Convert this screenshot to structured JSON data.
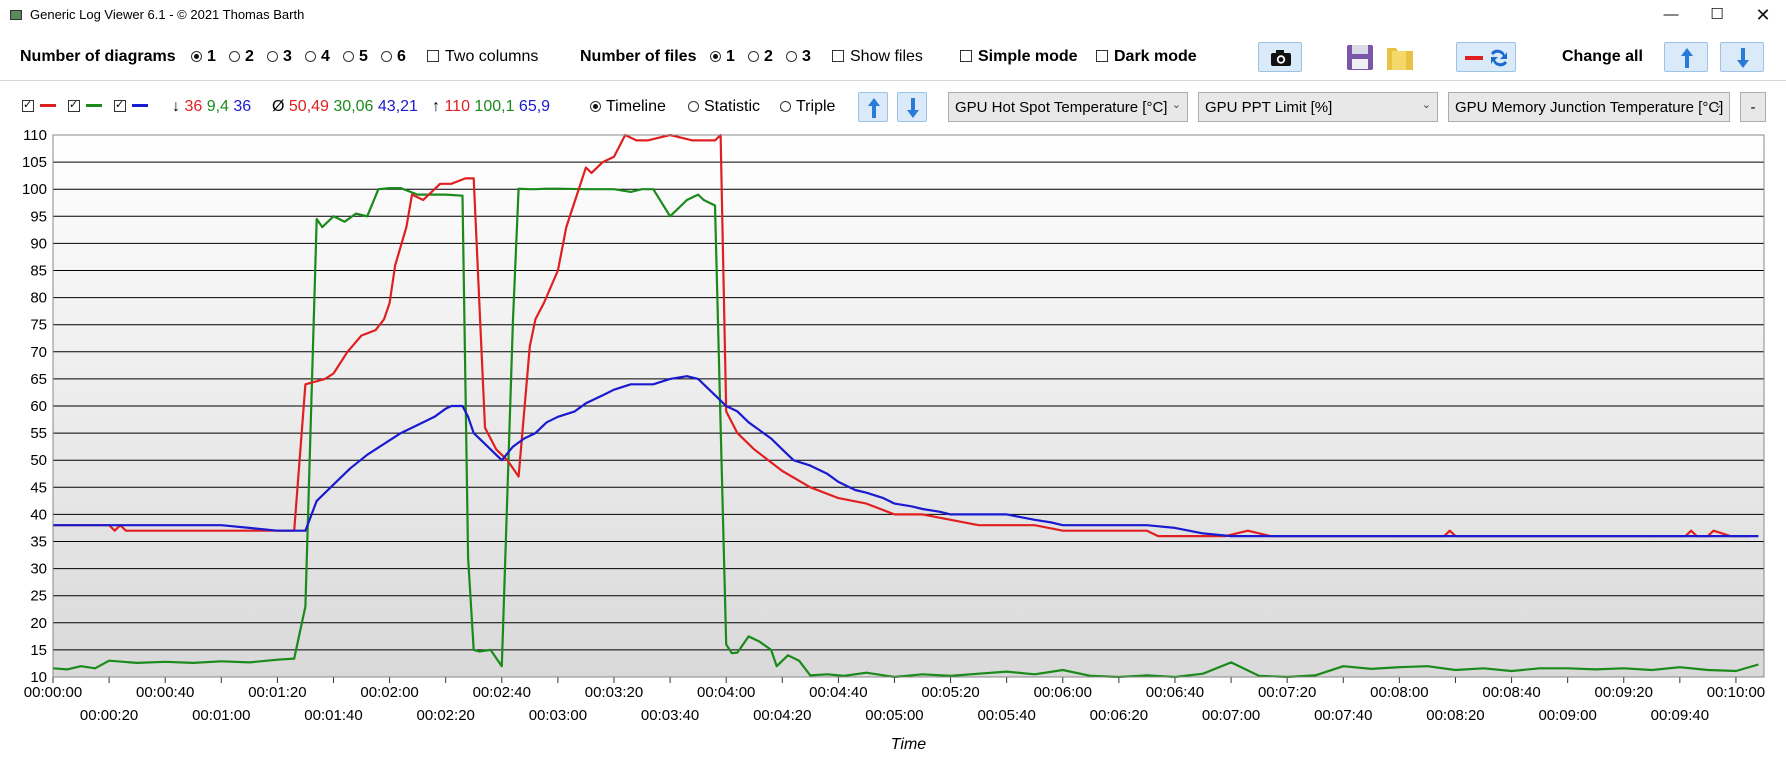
{
  "window": {
    "title": "Generic Log Viewer 6.1 - © 2021 Thomas Barth",
    "min_glyph": "—",
    "max_glyph": "☐",
    "close_glyph": "✕"
  },
  "toolbar": {
    "diagrams_label": "Number of diagrams",
    "diagram_options": [
      "1",
      "2",
      "3",
      "4",
      "5",
      "6"
    ],
    "diagram_selected": "1",
    "two_columns": "Two columns",
    "files_label": "Number of files",
    "file_options": [
      "1",
      "2",
      "3"
    ],
    "file_selected": "1",
    "show_files": "Show files",
    "simple_mode": "Simple mode",
    "dark_mode": "Dark mode",
    "change_all": "Change all",
    "icons": [
      "camera-icon",
      "save-icon",
      "folder-icon",
      "swap-colors-icon",
      "arrow-up-icon",
      "arrow-down-icon"
    ]
  },
  "series_bar": {
    "min_symbol": "↓",
    "avg_symbol": "Ø",
    "max_symbol": "↑",
    "min": [
      "36",
      "9,4",
      "36"
    ],
    "avg": [
      "50,49",
      "30,06",
      "43,21"
    ],
    "max": [
      "110",
      "100,1",
      "65,9"
    ],
    "colors": [
      "#e02020",
      "#1a8a1a",
      "#1a1ad0"
    ],
    "view_modes": [
      "Timeline",
      "Statistic",
      "Triple"
    ],
    "view_selected": "Timeline",
    "sensors": [
      "GPU Hot Spot Temperature [°C]",
      "GPU PPT Limit [%]",
      "GPU Memory Junction Temperature [°C]"
    ],
    "minus_label": "-"
  },
  "chart_data": {
    "type": "line",
    "xlabel": "Time",
    "ylabel": "",
    "ylim": [
      10,
      110
    ],
    "yticks": [
      10,
      15,
      20,
      25,
      30,
      35,
      40,
      45,
      50,
      55,
      60,
      65,
      70,
      75,
      80,
      85,
      90,
      95,
      100,
      105,
      110
    ],
    "xlim": [
      0,
      610
    ],
    "xticks": [
      {
        "t": 0,
        "label": "00:00:00"
      },
      {
        "t": 20,
        "label": "00:00:20"
      },
      {
        "t": 40,
        "label": "00:00:40"
      },
      {
        "t": 60,
        "label": "00:01:00"
      },
      {
        "t": 80,
        "label": "00:01:20"
      },
      {
        "t": 100,
        "label": "00:01:40"
      },
      {
        "t": 120,
        "label": "00:02:00"
      },
      {
        "t": 140,
        "label": "00:02:20"
      },
      {
        "t": 160,
        "label": "00:02:40"
      },
      {
        "t": 180,
        "label": "00:03:00"
      },
      {
        "t": 200,
        "label": "00:03:20"
      },
      {
        "t": 220,
        "label": "00:03:40"
      },
      {
        "t": 240,
        "label": "00:04:00"
      },
      {
        "t": 260,
        "label": "00:04:20"
      },
      {
        "t": 280,
        "label": "00:04:40"
      },
      {
        "t": 300,
        "label": "00:05:00"
      },
      {
        "t": 320,
        "label": "00:05:20"
      },
      {
        "t": 340,
        "label": "00:05:40"
      },
      {
        "t": 360,
        "label": "00:06:00"
      },
      {
        "t": 380,
        "label": "00:06:20"
      },
      {
        "t": 400,
        "label": "00:06:40"
      },
      {
        "t": 420,
        "label": "00:07:00"
      },
      {
        "t": 440,
        "label": "00:07:20"
      },
      {
        "t": 460,
        "label": "00:07:40"
      },
      {
        "t": 480,
        "label": "00:08:00"
      },
      {
        "t": 500,
        "label": "00:08:20"
      },
      {
        "t": 520,
        "label": "00:08:40"
      },
      {
        "t": 540,
        "label": "00:09:00"
      },
      {
        "t": 560,
        "label": "00:09:20"
      },
      {
        "t": 580,
        "label": "00:09:40"
      },
      {
        "t": 600,
        "label": "00:10:00"
      }
    ],
    "grid": true,
    "series": [
      {
        "name": "GPU Hot Spot Temperature [°C]",
        "color": "#e02020",
        "x": [
          0,
          20,
          22,
          24,
          26,
          28,
          36,
          60,
          86,
          90,
          97,
          100,
          105,
          110,
          115,
          118,
          120,
          122,
          126,
          128,
          132,
          138,
          142,
          147,
          148,
          150,
          154,
          158,
          162,
          166,
          170,
          172,
          175,
          180,
          183,
          190,
          192,
          196,
          200,
          204,
          208,
          212,
          220,
          228,
          236,
          238,
          240,
          244,
          250,
          260,
          270,
          280,
          290,
          300,
          310,
          320,
          330,
          340,
          350,
          360,
          362,
          366,
          372,
          378,
          390,
          394,
          398,
          418,
          426,
          434,
          445,
          496,
          498,
          500,
          582,
          584,
          586,
          588,
          590,
          592,
          598,
          605
        ],
        "y": [
          38,
          38,
          37,
          38,
          37,
          37,
          37,
          37,
          37,
          64,
          65,
          66,
          70,
          73,
          74,
          76,
          79,
          86,
          93,
          99,
          98,
          101,
          101,
          102,
          102,
          102,
          56,
          52,
          50,
          47,
          71,
          76,
          79,
          85,
          93,
          104,
          103,
          105,
          106,
          110,
          109,
          109,
          110,
          109,
          109,
          110,
          59,
          55,
          52,
          48,
          45,
          43,
          42,
          40,
          40,
          39,
          38,
          38,
          38,
          37,
          37,
          37,
          37,
          37,
          37,
          36,
          36,
          36,
          37,
          36,
          36,
          36,
          37,
          36,
          36,
          37,
          36,
          36,
          36,
          37,
          36,
          36
        ]
      },
      {
        "name": "GPU PPT Limit [%]",
        "color": "#1a8a1a",
        "x": [
          0,
          5,
          10,
          15,
          20,
          30,
          40,
          50,
          60,
          70,
          80,
          86,
          90,
          94,
          96,
          100,
          104,
          108,
          112,
          116,
          120,
          124,
          130,
          140,
          146,
          148,
          150,
          152,
          156,
          160,
          164,
          166,
          170,
          172,
          176,
          180,
          190,
          200,
          206,
          210,
          214,
          220,
          226,
          230,
          232,
          236,
          240,
          242,
          244,
          248,
          252,
          256,
          258,
          262,
          266,
          270,
          276,
          282,
          290,
          300,
          310,
          320,
          330,
          340,
          350,
          360,
          370,
          380,
          390,
          400,
          410,
          420,
          430,
          440,
          450,
          460,
          470,
          480,
          490,
          500,
          510,
          520,
          530,
          540,
          550,
          560,
          570,
          580,
          590,
          600,
          608
        ],
        "y": [
          11.6,
          11.4,
          12.0,
          11.6,
          13.0,
          12.6,
          12.8,
          12.6,
          12.9,
          12.7,
          13.2,
          13.4,
          23,
          94.5,
          93,
          95,
          94,
          95.5,
          95,
          100,
          100.2,
          100.2,
          99,
          99,
          98.8,
          32,
          15,
          14.7,
          15,
          12,
          76,
          100.1,
          100,
          100,
          100.1,
          100.1,
          100,
          100,
          99.5,
          100,
          100,
          95,
          98,
          99,
          98,
          97,
          16,
          14.4,
          14.5,
          17.5,
          16.5,
          15,
          12,
          14,
          13,
          10.3,
          10.5,
          10.2,
          10.8,
          10,
          10.5,
          10.2,
          10.6,
          11,
          10.5,
          11.3,
          10.2,
          10,
          10.3,
          10,
          10.6,
          12.7,
          10.2,
          10,
          10.3,
          12.0,
          11.5,
          11.8,
          12,
          11.3,
          11.6,
          11.1,
          11.6,
          11.6,
          11.4,
          11.6,
          11.3,
          11.8,
          11.3,
          11.1,
          12.3
        ]
      },
      {
        "name": "GPU Memory Junction Temperature [°C]",
        "color": "#1a1ad0",
        "x": [
          0,
          60,
          70,
          80,
          86,
          90,
          94,
          100,
          106,
          112,
          118,
          124,
          130,
          136,
          140,
          142,
          146,
          148,
          150,
          154,
          158,
          160,
          164,
          168,
          172,
          176,
          180,
          186,
          190,
          196,
          200,
          206,
          210,
          214,
          220,
          226,
          230,
          236,
          240,
          244,
          248,
          252,
          256,
          260,
          264,
          270,
          276,
          280,
          286,
          290,
          296,
          300,
          306,
          310,
          316,
          320,
          326,
          330,
          340,
          350,
          356,
          360,
          370,
          380,
          390,
          400,
          410,
          420,
          430,
          440,
          450,
          460,
          470,
          480,
          490,
          500,
          520,
          540,
          560,
          580,
          600,
          608
        ],
        "y": [
          38,
          38,
          37.5,
          37,
          37,
          37,
          42.5,
          45.5,
          48.5,
          51,
          53,
          55,
          56.5,
          58,
          59.5,
          60,
          60,
          58,
          55,
          53,
          51,
          50,
          52.5,
          54,
          55,
          57,
          58,
          59,
          60.5,
          62,
          63,
          64,
          64,
          64,
          65,
          65.5,
          65,
          62,
          60,
          59,
          57,
          55.5,
          54,
          52,
          50,
          49,
          47.5,
          46,
          44.5,
          44,
          43,
          42,
          41.5,
          41,
          40.5,
          40,
          40,
          40,
          40,
          39,
          38.5,
          38,
          38,
          38,
          38,
          37.5,
          36.5,
          36,
          36,
          36,
          36,
          36,
          36,
          36,
          36,
          36,
          36,
          36,
          36,
          36,
          36,
          36
        ]
      }
    ]
  }
}
